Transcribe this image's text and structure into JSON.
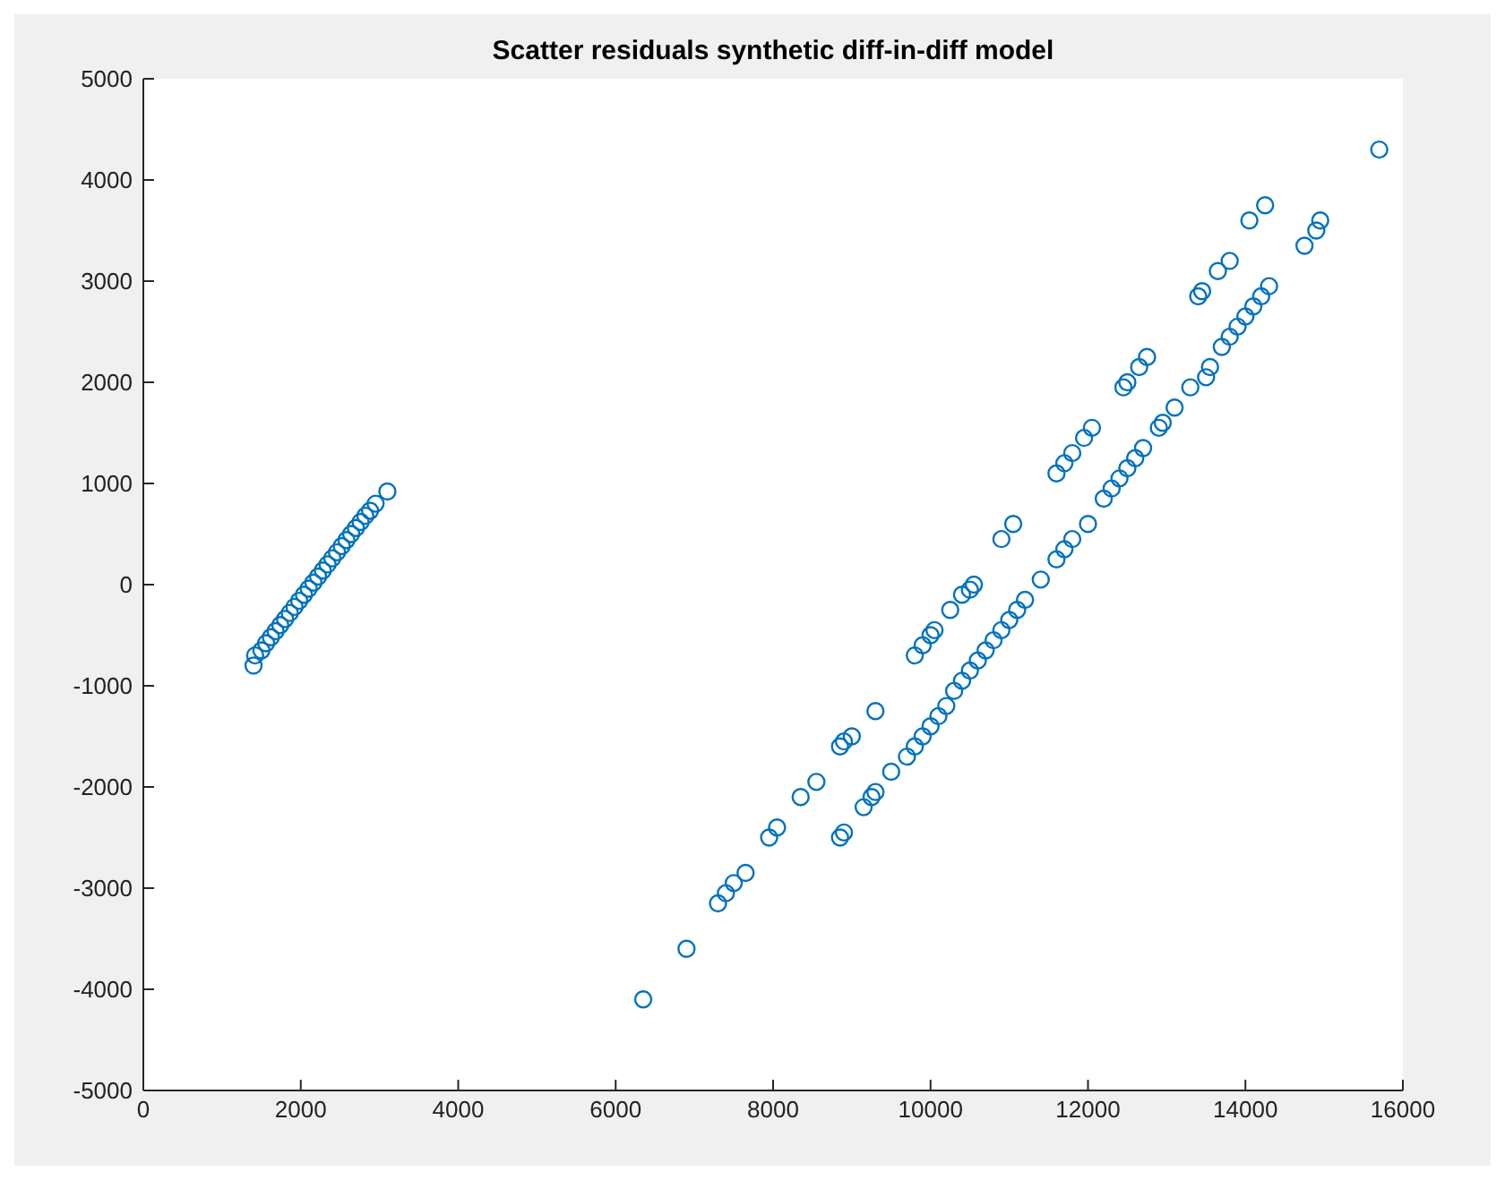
{
  "chart_data": {
    "type": "scatter",
    "title": "Scatter residuals synthetic diff-in-diff model",
    "marker": "circle",
    "xlim": [
      0,
      16000
    ],
    "xticks": [
      0,
      2000,
      4000,
      6000,
      8000,
      10000,
      12000,
      14000,
      16000
    ],
    "ylim": [
      -5000,
      5000
    ],
    "yticks": [
      -5000,
      -4000,
      -3000,
      -2000,
      -1000,
      0,
      1000,
      2000,
      3000,
      4000,
      5000
    ],
    "series": [
      {
        "color": "#0072bd",
        "x": [
          1400,
          1420,
          1500,
          1560,
          1620,
          1680,
          1740,
          1800,
          1860,
          1920,
          1980,
          2040,
          2100,
          2160,
          2220,
          2280,
          2340,
          2400,
          2460,
          2520,
          2580,
          2640,
          2700,
          2760,
          2820,
          2880,
          2950,
          3100,
          6350,
          6900,
          7300,
          7400,
          7500,
          7650,
          7950,
          8050,
          8350,
          8550,
          8850,
          8900,
          9000,
          9300,
          9800,
          9900,
          10000,
          10050,
          10250,
          10400,
          10500,
          10550,
          10900,
          11050,
          11600,
          11700,
          11800,
          11950,
          12050,
          12450,
          12500,
          12650,
          12750,
          13400,
          13450,
          13650,
          13800,
          14050,
          14250,
          8850,
          8900,
          9150,
          9250,
          9300,
          9500,
          9700,
          9800,
          9900,
          10000,
          10100,
          10200,
          10300,
          10400,
          10500,
          10600,
          10700,
          10800,
          10900,
          11000,
          11100,
          11200,
          11400,
          11600,
          11700,
          11800,
          12000,
          12200,
          12300,
          12400,
          12500,
          12600,
          12700,
          12900,
          12950,
          13100,
          13300,
          13500,
          13550,
          13700,
          13800,
          13900,
          14000,
          14100,
          14200,
          14300,
          14750,
          14900,
          14950,
          15700
        ],
        "values": [
          -800,
          -700,
          -650,
          -580,
          -520,
          -460,
          -400,
          -340,
          -280,
          -220,
          -160,
          -100,
          -40,
          20,
          80,
          140,
          200,
          260,
          320,
          380,
          440,
          500,
          560,
          620,
          680,
          730,
          800,
          920,
          -4100,
          -3600,
          -3150,
          -3050,
          -2950,
          -2850,
          -2500,
          -2400,
          -2100,
          -1950,
          -1600,
          -1550,
          -1500,
          -1250,
          -700,
          -600,
          -500,
          -450,
          -250,
          -100,
          -50,
          0,
          450,
          600,
          1100,
          1200,
          1300,
          1450,
          1550,
          1950,
          2000,
          2150,
          2250,
          2850,
          2900,
          3100,
          3200,
          3600,
          3750,
          -2500,
          -2450,
          -2200,
          -2100,
          -2050,
          -1850,
          -1700,
          -1600,
          -1500,
          -1400,
          -1300,
          -1200,
          -1050,
          -950,
          -850,
          -750,
          -650,
          -550,
          -450,
          -350,
          -250,
          -150,
          50,
          250,
          350,
          450,
          600,
          850,
          950,
          1050,
          1150,
          1250,
          1350,
          1550,
          1600,
          1750,
          1950,
          2050,
          2150,
          2350,
          2450,
          2550,
          2650,
          2750,
          2850,
          2950,
          3350,
          3500,
          3600,
          4300
        ]
      }
    ]
  }
}
